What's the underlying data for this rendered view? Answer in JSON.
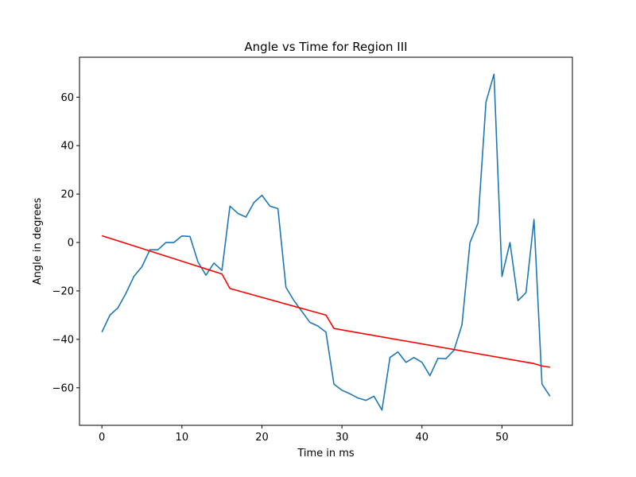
{
  "chart_data": {
    "type": "line",
    "title": "Angle vs Time for Region III",
    "xlabel": "Time in ms",
    "ylabel": "Angle in degrees",
    "xlim": [
      -2.8,
      58.8
    ],
    "ylim": [
      -75.5,
      76.5
    ],
    "x_ticks": [
      0,
      10,
      20,
      30,
      40,
      50
    ],
    "y_ticks": [
      -60,
      -40,
      -20,
      0,
      20,
      40,
      60
    ],
    "grid": false,
    "series": [
      {
        "color": "#1f77b4",
        "x": [
          0,
          1,
          2,
          3,
          4,
          5,
          6,
          7,
          8,
          9,
          10,
          11,
          12,
          13,
          14,
          15,
          16,
          17,
          18,
          19,
          20,
          21,
          22,
          23,
          24,
          25,
          26,
          27,
          28,
          29,
          30,
          31,
          32,
          33,
          34,
          35,
          36,
          37,
          38,
          39,
          40,
          41,
          42,
          43,
          44,
          45,
          46,
          47,
          48,
          49,
          50,
          51,
          52,
          53,
          54,
          55,
          56
        ],
        "values": [
          -37,
          -30,
          -27,
          -21,
          -14,
          -10,
          -3,
          -3,
          0,
          0,
          2.7,
          2.5,
          -8,
          -13.5,
          -8.5,
          -11.5,
          15,
          12,
          10.5,
          16.5,
          19.5,
          15,
          14,
          -18.5,
          -24,
          -28.5,
          -33,
          -34.5,
          -37,
          -58.5,
          -61,
          -62.5,
          -64.2,
          -65.2,
          -63.5,
          -69.2,
          -47.5,
          -45.2,
          -49.5,
          -47.5,
          -49.5,
          -55,
          -47.8,
          -48,
          -44.5,
          -34,
          0,
          8,
          58,
          69.5,
          -14,
          0,
          -24,
          -20.7,
          9.5,
          -58.5,
          -63.5
        ]
      },
      {
        "color": "#ff0000",
        "x": [
          0,
          15,
          16,
          28,
          29,
          54,
          55,
          56
        ],
        "values": [
          2.8,
          -13,
          -19,
          -30,
          -35.5,
          -50,
          -51,
          -51.5
        ]
      }
    ]
  }
}
